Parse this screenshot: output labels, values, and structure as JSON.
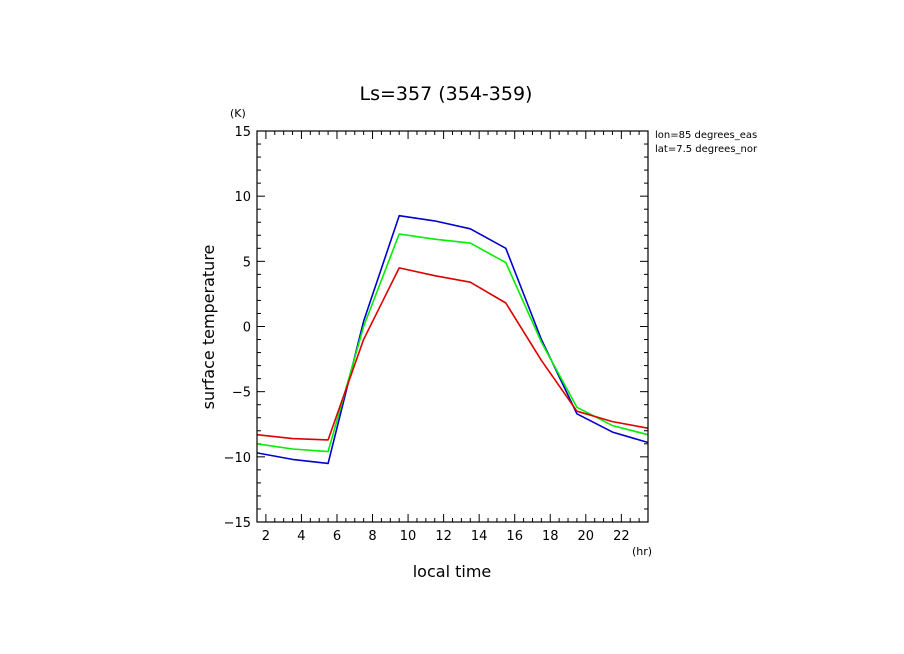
{
  "chart_data": {
    "type": "line",
    "title": "Ls=357 (354-359)",
    "xlabel": "local time",
    "ylabel": "surface temperature",
    "x_unit": "(hr)",
    "y_unit": "(K)",
    "annotations": [
      "lon=85 degrees_eas",
      "lat=7.5 degrees_nor"
    ],
    "xlim": [
      1.5,
      23.5
    ],
    "ylim": [
      -15,
      15
    ],
    "x_ticks": [
      2,
      4,
      6,
      8,
      10,
      12,
      14,
      16,
      18,
      20,
      22
    ],
    "y_ticks": [
      -15,
      -10,
      -5,
      0,
      5,
      10,
      15
    ],
    "x": [
      1.5,
      3.5,
      5.5,
      7.5,
      9.5,
      11.5,
      13.5,
      15.5,
      17.5,
      19.5,
      21.5,
      23.5
    ],
    "series": [
      {
        "color": "#0000cc",
        "values": [
          -9.7,
          -10.2,
          -10.5,
          0.4,
          8.5,
          8.1,
          7.5,
          6.0,
          -1.0,
          -6.7,
          -8.1,
          -8.9
        ]
      },
      {
        "color": "#00ee00",
        "values": [
          -9.0,
          -9.4,
          -9.6,
          0.0,
          7.1,
          6.7,
          6.4,
          4.9,
          -1.2,
          -6.2,
          -7.6,
          -8.3
        ]
      },
      {
        "color": "#dd0000",
        "values": [
          -8.3,
          -8.6,
          -8.7,
          -1.0,
          4.5,
          3.9,
          3.4,
          1.8,
          -2.6,
          -6.5,
          -7.3,
          -7.8
        ]
      }
    ],
    "grid": false,
    "legend": "none"
  }
}
